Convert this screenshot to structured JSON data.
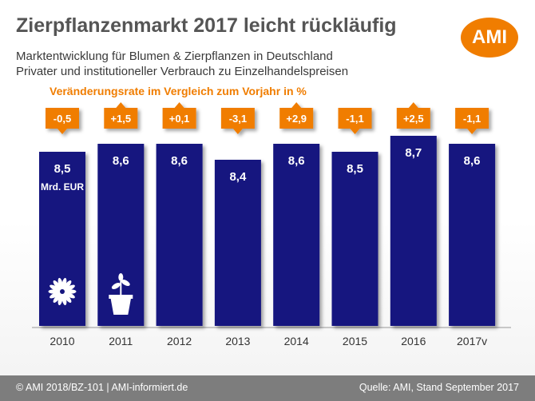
{
  "header": {
    "title": "Zierpflanzenmarkt 2017 leicht rückläufig",
    "subtitle_1": "Marktentwicklung für Blumen & Zierpflanzen in Deutschland",
    "subtitle_2": "Privater und institutioneller Verbrauch zu Einzelhandelspreisen",
    "rate_title": "Veränderungsrate im Vergleich zum Vorjahr in %"
  },
  "logo": {
    "text": "AMI",
    "color": "#f07d00"
  },
  "footer": {
    "left": "© AMI 2018/BZ-101 | AMI-informiert.de",
    "right": "Quelle: AMI, Stand September 2017"
  },
  "colors": {
    "bar": "#15157f",
    "rate_box": "#f07d00",
    "axis_text": "#333333"
  },
  "icons": [
    "flower-icon",
    "potted-plant-icon"
  ],
  "chart_data": {
    "type": "bar",
    "categories": [
      "2010",
      "2011",
      "2012",
      "2013",
      "2014",
      "2015",
      "2016",
      "2017v"
    ],
    "values": [
      8.5,
      8.6,
      8.6,
      8.4,
      8.6,
      8.5,
      8.7,
      8.6
    ],
    "value_labels": [
      "8,5",
      "8,6",
      "8,6",
      "8,4",
      "8,6",
      "8,5",
      "8,7",
      "8,6"
    ],
    "unit_label": "Mrd. EUR",
    "changes": [
      -0.5,
      1.5,
      0.1,
      -3.1,
      2.9,
      -1.1,
      2.5,
      -1.1
    ],
    "change_labels": [
      "-0,5",
      "+1,5",
      "+0,1",
      "-3,1",
      "+2,9",
      "-1,1",
      "+2,5",
      "-1,1"
    ],
    "title": "Zierpflanzenmarkt 2017 leicht rückläufig",
    "xlabel": "",
    "ylabel": "",
    "grid": false
  }
}
